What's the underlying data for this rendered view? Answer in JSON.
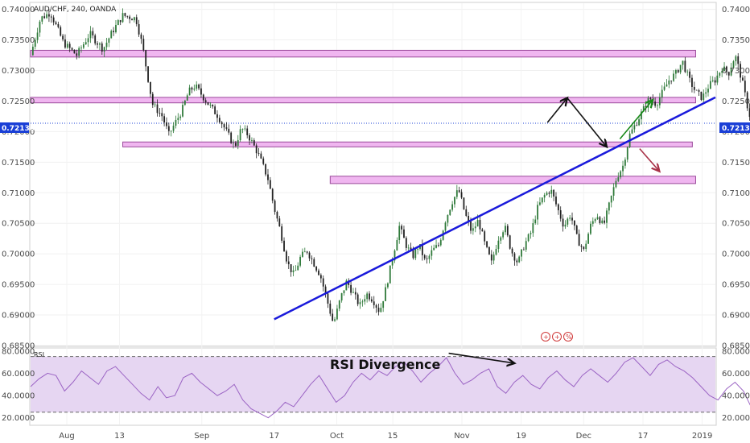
{
  "chart_data": {
    "type": "candlestick",
    "title": "AUD/CHF, 240, OANDA",
    "price_panel": {
      "ylim": [
        0.685,
        0.741
      ],
      "y_ticks": [
        "0.74000",
        "0.73500",
        "0.73000",
        "0.72500",
        "0.72000",
        "0.71500",
        "0.71000",
        "0.70500",
        "0.70000",
        "0.69500",
        "0.69000",
        "0.68500"
      ],
      "y_tick_values": [
        0.74,
        0.735,
        0.73,
        0.725,
        0.72,
        0.715,
        0.71,
        0.705,
        0.7,
        0.695,
        0.69,
        0.685
      ],
      "current_price": 0.72136,
      "current_price_label": "0.72136",
      "close_path": [
        [
          0,
          0.7325
        ],
        [
          1.5,
          0.7385
        ],
        [
          3,
          0.7395
        ],
        [
          5,
          0.7345
        ],
        [
          7,
          0.7325
        ],
        [
          9,
          0.736
        ],
        [
          11,
          0.7335
        ],
        [
          12.5,
          0.7365
        ],
        [
          14,
          0.739
        ],
        [
          16,
          0.7385
        ],
        [
          17,
          0.734
        ],
        [
          18.5,
          0.7245
        ],
        [
          20,
          0.7225
        ],
        [
          21,
          0.7195
        ],
        [
          22,
          0.7215
        ],
        [
          23,
          0.7235
        ],
        [
          24,
          0.7265
        ],
        [
          25,
          0.7275
        ],
        [
          27,
          0.7245
        ],
        [
          28.5,
          0.7225
        ],
        [
          30,
          0.7195
        ],
        [
          31,
          0.7175
        ],
        [
          32,
          0.7205
        ],
        [
          33,
          0.7195
        ],
        [
          34.5,
          0.7165
        ],
        [
          36,
          0.7125
        ],
        [
          37,
          0.7075
        ],
        [
          38,
          0.7035
        ],
        [
          39,
          0.6985
        ],
        [
          40,
          0.6965
        ],
        [
          41,
          0.6995
        ],
        [
          42,
          0.7005
        ],
        [
          43,
          0.6985
        ],
        [
          44,
          0.6965
        ],
        [
          45,
          0.6925
        ],
        [
          46,
          0.6885
        ],
        [
          47,
          0.6925
        ],
        [
          48,
          0.6955
        ],
        [
          49,
          0.6935
        ],
        [
          50,
          0.6915
        ],
        [
          51,
          0.6935
        ],
        [
          52,
          0.6925
        ],
        [
          53,
          0.6905
        ],
        [
          54,
          0.6945
        ],
        [
          55,
          0.6995
        ],
        [
          56,
          0.7045
        ],
        [
          57,
          0.7015
        ],
        [
          58,
          0.6995
        ],
        [
          59,
          0.7015
        ],
        [
          60,
          0.6985
        ],
        [
          61,
          0.7005
        ],
        [
          62,
          0.7015
        ],
        [
          63,
          0.7055
        ],
        [
          64,
          0.7085
        ],
        [
          65,
          0.7105
        ],
        [
          66,
          0.7065
        ],
        [
          67,
          0.7035
        ],
        [
          68,
          0.7055
        ],
        [
          69,
          0.7015
        ],
        [
          70,
          0.6985
        ],
        [
          71,
          0.7025
        ],
        [
          72,
          0.7045
        ],
        [
          73,
          0.7005
        ],
        [
          74,
          0.6985
        ],
        [
          75,
          0.7015
        ],
        [
          76,
          0.7035
        ],
        [
          77,
          0.7075
        ],
        [
          78,
          0.7095
        ],
        [
          79,
          0.7105
        ],
        [
          80,
          0.7075
        ],
        [
          81,
          0.7045
        ],
        [
          82,
          0.7065
        ],
        [
          83,
          0.7025
        ],
        [
          84,
          0.7005
        ],
        [
          85,
          0.7045
        ],
        [
          86,
          0.7065
        ],
        [
          87,
          0.7045
        ],
        [
          88,
          0.7085
        ],
        [
          89,
          0.7125
        ],
        [
          90,
          0.7145
        ],
        [
          91,
          0.7195
        ],
        [
          92,
          0.7215
        ],
        [
          93,
          0.7235
        ],
        [
          94,
          0.7255
        ],
        [
          95,
          0.7245
        ],
        [
          96,
          0.7265
        ],
        [
          97,
          0.7285
        ],
        [
          98,
          0.7295
        ],
        [
          99,
          0.7315
        ],
        [
          100,
          0.7285
        ],
        [
          101,
          0.7265
        ],
        [
          102,
          0.7255
        ],
        [
          103,
          0.7275
        ],
        [
          104,
          0.7285
        ],
        [
          105,
          0.7305
        ],
        [
          106,
          0.7295
        ],
        [
          107,
          0.7325
        ],
        [
          108,
          0.7285
        ],
        [
          109,
          0.7235
        ],
        [
          110,
          0.7195
        ],
        [
          111,
          0.7175
        ],
        [
          112,
          0.7195
        ],
        [
          113,
          0.7205
        ],
        [
          114,
          0.7185
        ],
        [
          115,
          0.7195
        ],
        [
          116,
          0.72136
        ]
      ]
    },
    "rsi_panel": {
      "label": "RSI",
      "ylim": [
        14,
        82
      ],
      "y_ticks": [
        "80.0000",
        "60.0000",
        "40.0000",
        "20.0000"
      ],
      "y_tick_values": [
        80,
        60,
        40,
        20
      ],
      "band": [
        25,
        75
      ],
      "values": [
        48,
        55,
        60,
        58,
        44,
        52,
        62,
        56,
        50,
        62,
        66,
        58,
        50,
        42,
        36,
        48,
        38,
        40,
        56,
        60,
        52,
        46,
        40,
        44,
        50,
        36,
        28,
        24,
        20,
        26,
        34,
        30,
        40,
        50,
        58,
        46,
        34,
        40,
        52,
        60,
        54,
        62,
        58,
        66,
        70,
        62,
        52,
        60,
        66,
        74,
        60,
        50,
        54,
        60,
        64,
        48,
        42,
        52,
        58,
        50,
        46,
        56,
        62,
        54,
        48,
        58,
        64,
        58,
        52,
        60,
        70,
        74,
        66,
        58,
        68,
        72,
        66,
        62,
        56,
        48,
        40,
        36,
        46,
        52,
        44,
        28,
        26,
        36,
        42,
        38,
        44
      ]
    },
    "x_ticks": [
      "Aug",
      "13",
      "Sep",
      "17",
      "Oct",
      "15",
      "Nov",
      "19",
      "Dec",
      "17",
      "2019"
    ],
    "x_tick_values": [
      5.5,
      13.5,
      26,
      37,
      46.5,
      55,
      65.5,
      74.5,
      84,
      93,
      102
    ],
    "x_range": [
      0,
      104
    ],
    "zones": [
      {
        "price_low": 0.7322,
        "price_high": 0.7333,
        "x_start": 0,
        "x_end": 101
      },
      {
        "price_low": 0.7247,
        "price_high": 0.7256,
        "x_start": 0,
        "x_end": 101
      },
      {
        "price_low": 0.7175,
        "price_high": 0.7183,
        "x_start": 14,
        "x_end": 100.5
      },
      {
        "price_low": 0.7115,
        "price_high": 0.7127,
        "x_start": 45.5,
        "x_end": 101
      }
    ],
    "trendline": {
      "x1": 37,
      "y1": 0.6893,
      "x2": 104,
      "y2": 0.7256
    },
    "arrows": [
      {
        "color": "#111111",
        "points": [
          [
            78.5,
            0.7215
          ],
          [
            81.5,
            0.7255
          ]
        ]
      },
      {
        "color": "#111111",
        "points": [
          [
            81.5,
            0.7255
          ],
          [
            87.5,
            0.7175
          ]
        ]
      },
      {
        "color": "#1a8a1a",
        "points": [
          [
            89.5,
            0.7188
          ],
          [
            94.5,
            0.7252
          ]
        ]
      },
      {
        "color": "#a83248",
        "points": [
          [
            92.5,
            0.7172
          ],
          [
            95.5,
            0.7135
          ]
        ]
      }
    ],
    "rsi_divergence_line": {
      "x1": 63.5,
      "y1": 78,
      "x2": 73.5,
      "y2": 69
    },
    "annotation": "RSI Divergence"
  },
  "colors": {
    "zone_fill": "#f0b6f0",
    "zone_stroke": "#9a4a9a",
    "trendline": "#1a1adb",
    "candle_up": "#2f7a3a",
    "candle_down": "#222222",
    "price_label_bg": "#1a3fd6",
    "rsi_line": "#9b64c4",
    "rsi_band": "#e6d6f2"
  },
  "icons": [
    "flag-icon",
    "flag-icon",
    "event-icon"
  ]
}
